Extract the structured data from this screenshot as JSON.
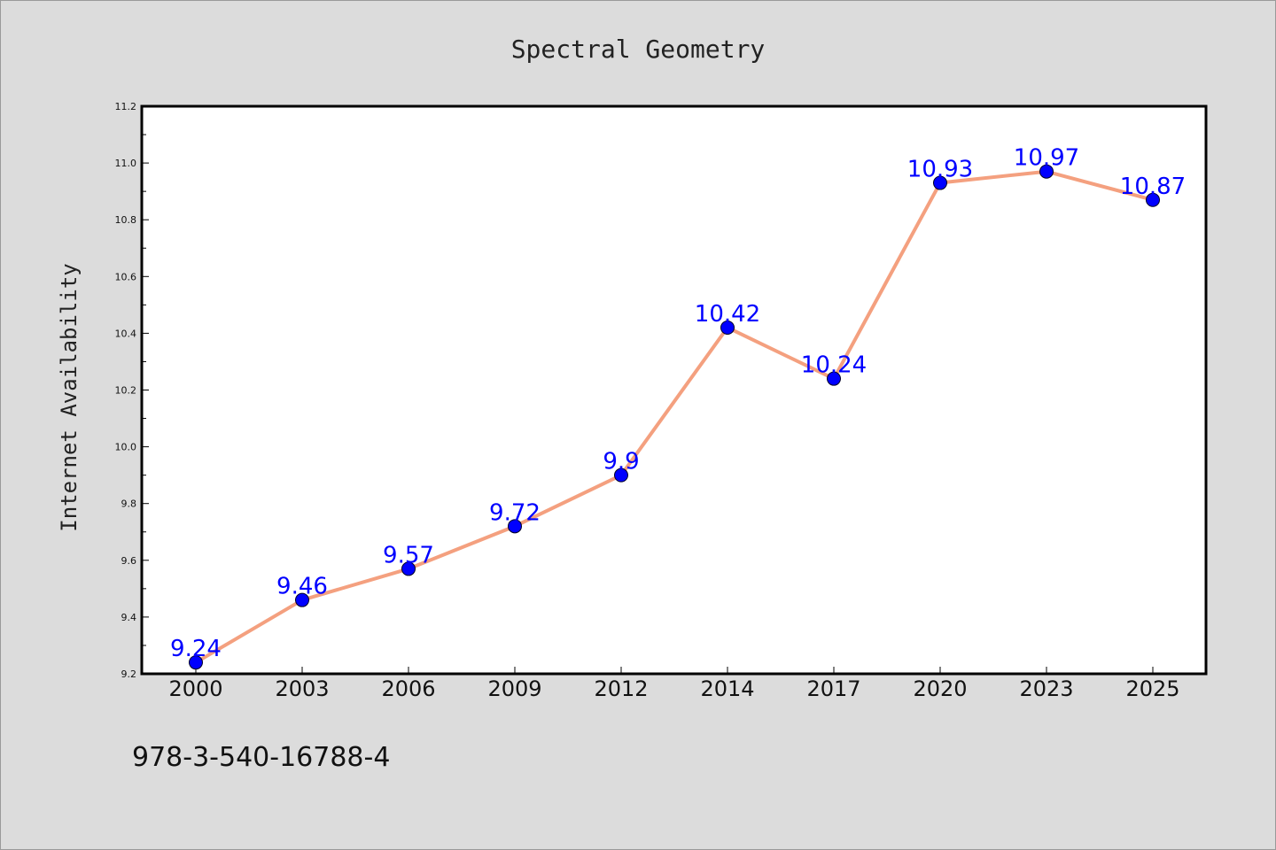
{
  "chart_data": {
    "type": "line",
    "title": "Spectral Geometry",
    "xlabel": "",
    "ylabel": "Internet Availability",
    "categories": [
      "2000",
      "2003",
      "2006",
      "2009",
      "2012",
      "2014",
      "2017",
      "2020",
      "2023",
      "2025"
    ],
    "series": [
      {
        "values": [
          9.24,
          9.46,
          9.57,
          9.72,
          9.9,
          10.42,
          10.24,
          10.93,
          10.97,
          10.87
        ],
        "labels": [
          "9.24",
          "9.46",
          "9.57",
          "9.72",
          "9.9",
          "10.42",
          "10.24",
          "10.93",
          "10.97",
          "10.87"
        ],
        "line_color": "#f4a07f",
        "marker_color": "#0000ff"
      }
    ],
    "ylim": [
      9.2,
      11.2
    ],
    "yticks": [
      "9.2",
      "9.4",
      "9.6",
      "9.8",
      "10.0",
      "10.2",
      "10.4",
      "10.6",
      "10.8",
      "11.0",
      "11.2"
    ],
    "grid": false,
    "background": "#dcdcdc",
    "plot_background": "#ffffff"
  },
  "footer": {
    "isbn": "978-3-540-16788-4"
  }
}
